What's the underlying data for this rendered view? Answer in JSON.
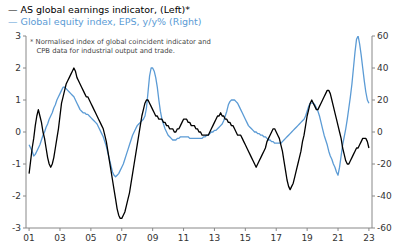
{
  "chart_data": {
    "type": "line",
    "legend": "top-left",
    "annotations": [
      "* Normalised index of global coincident indicator and",
      "   CPB data for industrial output and trade."
    ],
    "x": [
      2001,
      2001.1,
      2001.2,
      2001.3,
      2001.4,
      2001.5,
      2001.6,
      2001.7,
      2001.8,
      2001.9,
      2002,
      2002.1,
      2002.2,
      2002.3,
      2002.4,
      2002.5,
      2002.6,
      2002.7,
      2002.8,
      2002.9,
      2003,
      2003.1,
      2003.2,
      2003.3,
      2003.4,
      2003.5,
      2003.6,
      2003.7,
      2003.8,
      2003.9,
      2004,
      2004.1,
      2004.2,
      2004.3,
      2004.4,
      2004.5,
      2004.6,
      2004.7,
      2004.8,
      2004.9,
      2005,
      2005.1,
      2005.2,
      2005.3,
      2005.4,
      2005.5,
      2005.6,
      2005.7,
      2005.8,
      2005.9,
      2006,
      2006.1,
      2006.2,
      2006.3,
      2006.4,
      2006.5,
      2006.6,
      2006.7,
      2006.8,
      2006.9,
      2007,
      2007.1,
      2007.2,
      2007.3,
      2007.4,
      2007.5,
      2007.6,
      2007.7,
      2007.8,
      2007.9,
      2008,
      2008.1,
      2008.2,
      2008.3,
      2008.4,
      2008.5,
      2008.6,
      2008.7,
      2008.8,
      2008.9,
      2009,
      2009.1,
      2009.2,
      2009.3,
      2009.4,
      2009.5,
      2009.6,
      2009.7,
      2009.8,
      2009.9,
      2010,
      2010.1,
      2010.2,
      2010.3,
      2010.4,
      2010.5,
      2010.6,
      2010.7,
      2010.8,
      2010.9,
      2011,
      2011.1,
      2011.2,
      2011.3,
      2011.4,
      2011.5,
      2011.6,
      2011.7,
      2011.8,
      2011.9,
      2012,
      2012.1,
      2012.2,
      2012.3,
      2012.4,
      2012.5,
      2012.6,
      2012.7,
      2012.8,
      2012.9,
      2013,
      2013.1,
      2013.2,
      2013.3,
      2013.4,
      2013.5,
      2013.6,
      2013.7,
      2013.8,
      2013.9,
      2014,
      2014.1,
      2014.2,
      2014.3,
      2014.4,
      2014.5,
      2014.6,
      2014.7,
      2014.8,
      2014.9,
      2015,
      2015.1,
      2015.2,
      2015.3,
      2015.4,
      2015.5,
      2015.6,
      2015.7,
      2015.8,
      2015.9,
      2016,
      2016.1,
      2016.2,
      2016.3,
      2016.4,
      2016.5,
      2016.6,
      2016.7,
      2016.8,
      2016.9,
      2017,
      2017.1,
      2017.2,
      2017.3,
      2017.4,
      2017.5,
      2017.6,
      2017.7,
      2017.8,
      2017.9,
      2018,
      2018.1,
      2018.2,
      2018.3,
      2018.4,
      2018.5,
      2018.6,
      2018.7,
      2018.8,
      2018.9,
      2019,
      2019.1,
      2019.2,
      2019.3,
      2019.4,
      2019.5,
      2019.6,
      2019.7,
      2019.8,
      2019.9,
      2020,
      2020.1,
      2020.2,
      2020.3,
      2020.4,
      2020.5,
      2020.6,
      2020.7,
      2020.8,
      2020.9,
      2021,
      2021.1,
      2021.2,
      2021.3,
      2021.4,
      2021.5,
      2021.6,
      2021.7,
      2021.8,
      2021.9,
      2022,
      2022.1,
      2022.2,
      2022.3,
      2022.4,
      2022.5,
      2022.6,
      2022.7,
      2022.8,
      2022.9,
      2023
    ],
    "series": [
      {
        "name": "— AS global earnings indicator, (Left)*",
        "color": "#000000",
        "values": [
          -1.3,
          -0.9,
          -0.5,
          -0.2,
          0.2,
          0.5,
          0.7,
          0.5,
          0.3,
          0.0,
          -0.2,
          -0.5,
          -0.8,
          -1.0,
          -1.1,
          -1.0,
          -0.8,
          -0.5,
          -0.2,
          0.1,
          0.5,
          0.9,
          1.1,
          1.3,
          1.5,
          1.6,
          1.7,
          1.8,
          1.9,
          2.0,
          1.9,
          1.7,
          1.6,
          1.5,
          1.4,
          1.3,
          1.2,
          1.1,
          1.1,
          1.0,
          0.9,
          0.8,
          0.7,
          0.6,
          0.5,
          0.4,
          0.3,
          0.2,
          0.1,
          -0.1,
          -0.3,
          -0.6,
          -0.9,
          -1.2,
          -1.5,
          -1.8,
          -2.1,
          -2.4,
          -2.6,
          -2.7,
          -2.7,
          -2.6,
          -2.5,
          -2.3,
          -2.1,
          -1.9,
          -1.6,
          -1.3,
          -1.0,
          -0.7,
          -0.4,
          -0.1,
          0.2,
          0.5,
          0.7,
          0.9,
          1.0,
          1.0,
          0.9,
          0.8,
          0.7,
          0.6,
          0.5,
          0.5,
          0.4,
          0.4,
          0.4,
          0.3,
          0.3,
          0.2,
          0.2,
          0.1,
          0.1,
          0.1,
          0.0,
          0.0,
          0.1,
          0.1,
          0.2,
          0.3,
          0.4,
          0.4,
          0.4,
          0.3,
          0.3,
          0.2,
          0.2,
          0.2,
          0.1,
          0.1,
          0.0,
          0.0,
          -0.1,
          -0.1,
          -0.1,
          -0.1,
          -0.1,
          0.0,
          0.1,
          0.2,
          0.3,
          0.4,
          0.5,
          0.5,
          0.6,
          0.5,
          0.5,
          0.4,
          0.4,
          0.3,
          0.3,
          0.2,
          0.2,
          0.1,
          0.0,
          -0.1,
          -0.1,
          -0.1,
          -0.2,
          -0.3,
          -0.4,
          -0.5,
          -0.6,
          -0.7,
          -0.8,
          -0.9,
          -1.0,
          -1.1,
          -1.0,
          -0.9,
          -0.8,
          -0.7,
          -0.6,
          -0.5,
          -0.3,
          -0.2,
          -0.1,
          0.0,
          0.1,
          0.1,
          0.0,
          -0.1,
          -0.2,
          -0.4,
          -0.6,
          -0.9,
          -1.2,
          -1.5,
          -1.7,
          -1.8,
          -1.7,
          -1.6,
          -1.4,
          -1.2,
          -1.0,
          -0.8,
          -0.6,
          -0.3,
          -0.1,
          0.2,
          0.5,
          0.7,
          0.9,
          1.0,
          0.9,
          0.8,
          0.7,
          0.7,
          0.8,
          0.9,
          1.0,
          1.1,
          1.2,
          1.3,
          1.3,
          1.2,
          1.0,
          0.8,
          0.6,
          0.4,
          0.2,
          0.0,
          -0.2,
          -0.5,
          -0.7,
          -0.9,
          -1.0,
          -1.0,
          -0.9,
          -0.8,
          -0.7,
          -0.6,
          -0.5,
          -0.5,
          -0.4,
          -0.3,
          -0.2,
          -0.2,
          -0.2,
          -0.3,
          -0.5
        ]
      },
      {
        "name": "— Global equity index, EPS, y/y% (Right)",
        "color": "#5b9bd5",
        "axis": "y2",
        "values": [
          -8,
          -10,
          -12,
          -15,
          -14,
          -12,
          -10,
          -8,
          -5,
          -2,
          0,
          3,
          5,
          8,
          10,
          12,
          15,
          17,
          20,
          22,
          24,
          26,
          28,
          28,
          27,
          26,
          25,
          24,
          23,
          22,
          20,
          18,
          16,
          14,
          13,
          12,
          12,
          11,
          11,
          10,
          9,
          8,
          7,
          6,
          5,
          3,
          1,
          -1,
          -3,
          -6,
          -9,
          -13,
          -17,
          -21,
          -25,
          -27,
          -28,
          -27,
          -26,
          -24,
          -22,
          -20,
          -17,
          -14,
          -11,
          -8,
          -5,
          -2,
          0,
          2,
          4,
          5,
          6,
          7,
          8,
          10,
          15,
          25,
          35,
          40,
          40,
          38,
          34,
          28,
          20,
          13,
          8,
          5,
          2,
          0,
          -2,
          -3,
          -4,
          -5,
          -5,
          -5,
          -4,
          -4,
          -3,
          -3,
          -3,
          -3,
          -3,
          -3,
          -4,
          -4,
          -4,
          -4,
          -4,
          -4,
          -4,
          -4,
          -4,
          -3,
          -3,
          -2,
          -2,
          -1,
          0,
          0,
          1,
          1,
          2,
          3,
          4,
          5,
          7,
          10,
          13,
          17,
          19,
          20,
          20,
          20,
          19,
          18,
          16,
          14,
          12,
          10,
          8,
          6,
          4,
          3,
          2,
          1,
          0,
          0,
          -1,
          -1,
          -2,
          -2,
          -3,
          -3,
          -4,
          -5,
          -5,
          -6,
          -6,
          -7,
          -7,
          -7,
          -7,
          -7,
          -6,
          -5,
          -4,
          -3,
          -2,
          -1,
          0,
          1,
          2,
          3,
          4,
          5,
          6,
          7,
          8,
          10,
          13,
          16,
          18,
          18,
          18,
          17,
          15,
          13,
          10,
          6,
          2,
          -2,
          -5,
          -8,
          -12,
          -15,
          -17,
          -20,
          -22,
          -25,
          -27,
          -22,
          -15,
          -8,
          -3,
          2,
          8,
          15,
          22,
          30,
          40,
          50,
          58,
          60,
          55,
          48,
          40,
          32,
          25,
          20,
          18
        ]
      }
    ],
    "xlim": [
      2000.8,
      2023.2
    ],
    "xticks": [
      {
        "value": 2001,
        "label": "01"
      },
      {
        "value": 2003,
        "label": "03"
      },
      {
        "value": 2005,
        "label": "05"
      },
      {
        "value": 2007,
        "label": "07"
      },
      {
        "value": 2009,
        "label": "09"
      },
      {
        "value": 2011,
        "label": "11"
      },
      {
        "value": 2013,
        "label": "13"
      },
      {
        "value": 2015,
        "label": "15"
      },
      {
        "value": 2017,
        "label": "17"
      },
      {
        "value": 2019,
        "label": "19"
      },
      {
        "value": 2021,
        "label": "21"
      },
      {
        "value": 2023,
        "label": "23"
      }
    ],
    "ylim": [
      -3.0,
      3.0
    ],
    "yticks": [
      -3,
      -2,
      -1,
      0,
      1,
      2,
      3
    ],
    "y2lim": [
      -60,
      60
    ],
    "y2ticks": [
      -60,
      -40,
      -20,
      0,
      20,
      40,
      60
    ],
    "grid": false
  }
}
